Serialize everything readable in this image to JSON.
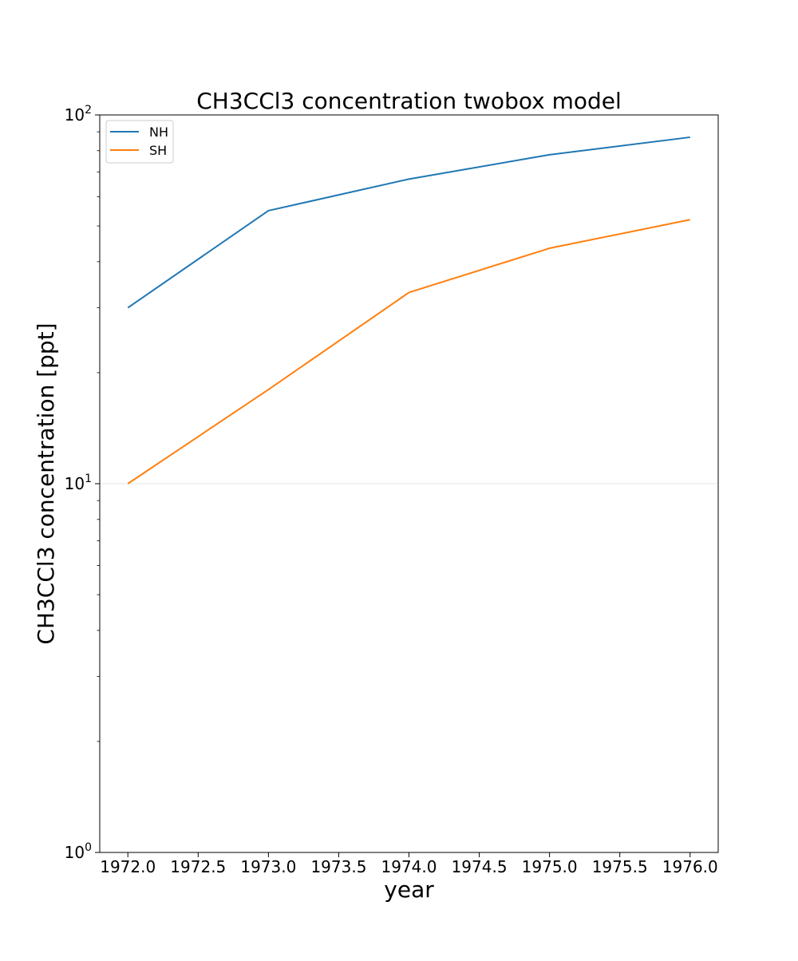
{
  "chart_data": {
    "type": "line",
    "title": "CH3CCl3 concentration twobox model",
    "xlabel": "year",
    "ylabel": "CH3CCl3 concentration [ppt]",
    "x": [
      1972.0,
      1973.0,
      1974.0,
      1975.0,
      1976.0
    ],
    "xlim": [
      1971.8,
      1976.2
    ],
    "ylim": [
      1,
      100
    ],
    "y_scale": "log",
    "x_ticks": [
      1972.0,
      1972.5,
      1973.0,
      1973.5,
      1974.0,
      1974.5,
      1975.0,
      1975.5,
      1976.0
    ],
    "x_tick_labels": [
      "1972.0",
      "1972.5",
      "1973.0",
      "1973.5",
      "1974.0",
      "1974.5",
      "1975.0",
      "1975.5",
      "1976.0"
    ],
    "y_major_ticks": [
      1,
      10,
      100
    ],
    "y_tick_labels": [
      {
        "base": "10",
        "exp": "0"
      },
      {
        "base": "10",
        "exp": "1"
      },
      {
        "base": "10",
        "exp": "2"
      }
    ],
    "grid": "horizontal line at 10^1",
    "legend_position": "top-left",
    "series": [
      {
        "name": "NH",
        "color": "#1f77b4",
        "values": [
          30,
          55,
          67,
          78,
          87
        ]
      },
      {
        "name": "SH",
        "color": "#ff7f0e",
        "values": [
          10,
          18,
          33,
          43.5,
          52
        ]
      }
    ]
  }
}
